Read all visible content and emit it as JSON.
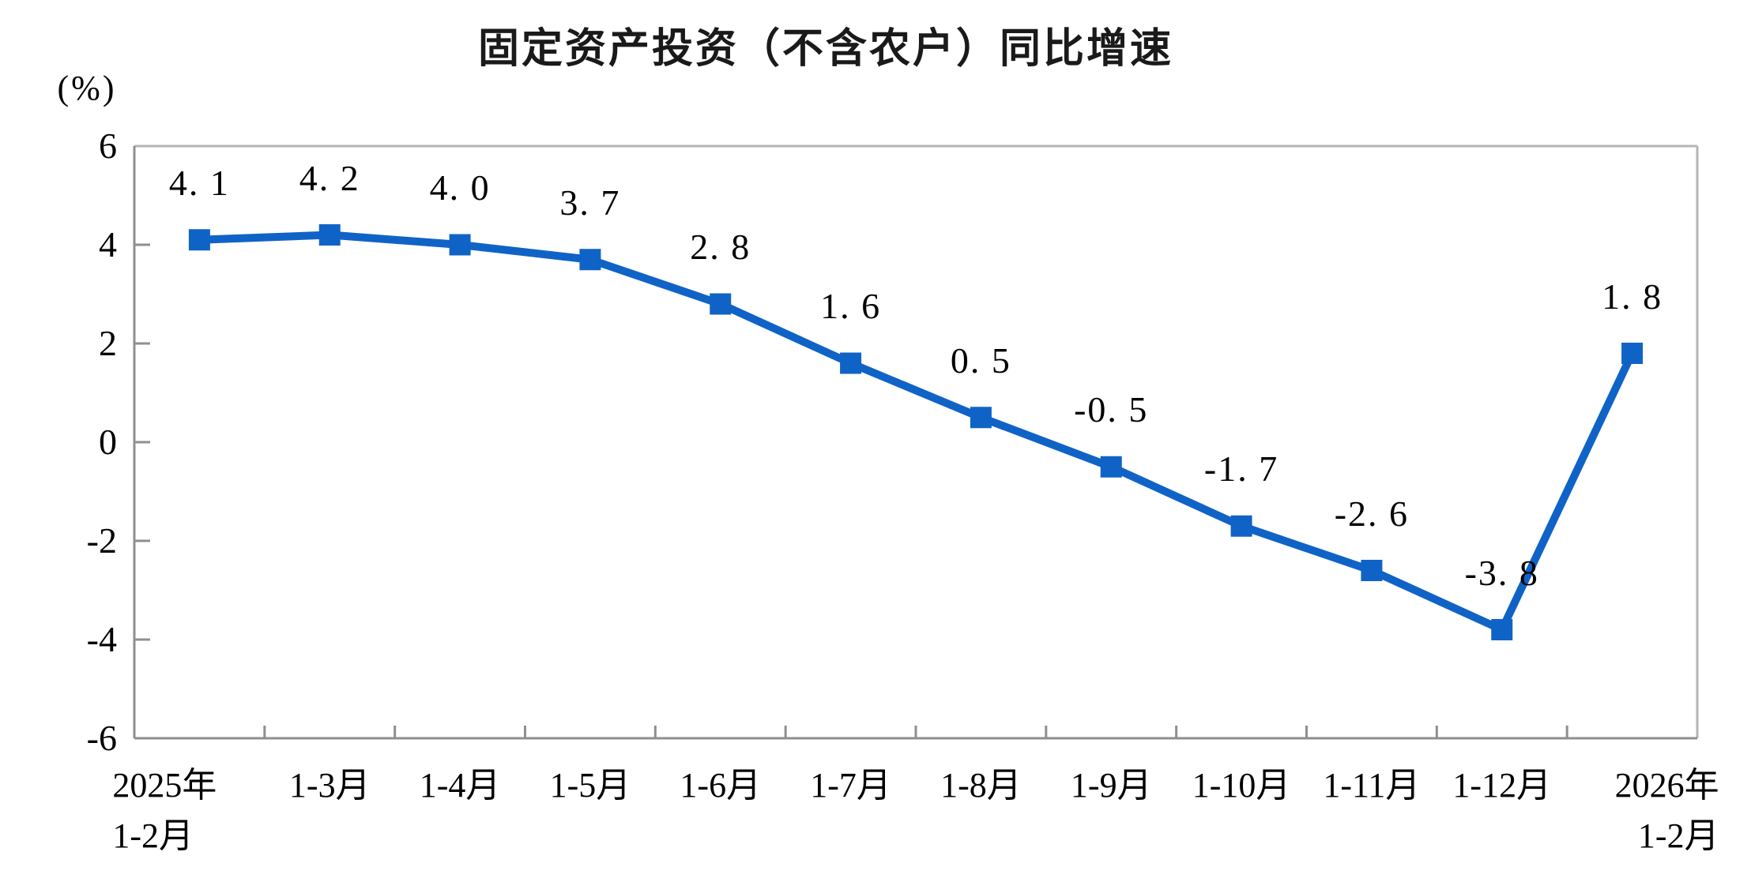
{
  "chart_data": {
    "type": "line",
    "title": "固定资产投资（不含农户）同比增速",
    "unit_label": "(%)",
    "categories": [
      "2025年\n1-2月",
      "1-3月",
      "1-4月",
      "1-5月",
      "1-6月",
      "1-7月",
      "1-8月",
      "1-9月",
      "1-10月",
      "1-11月",
      "1-12月",
      "2026年\n1-2月"
    ],
    "values": [
      4.1,
      4.2,
      4.0,
      3.7,
      2.8,
      1.6,
      0.5,
      -0.5,
      -1.7,
      -2.6,
      -3.8,
      1.8
    ],
    "data_labels": [
      "4. 1",
      "4. 2",
      "4. 0",
      "3. 7",
      "2. 8",
      "1. 6",
      "0. 5",
      "-0. 5",
      "-1. 7",
      "-2. 6",
      "-3. 8",
      "1. 8"
    ],
    "y_ticks": [
      "6",
      "4",
      "2",
      "0",
      "-2",
      "-4",
      "-6"
    ],
    "ylim": [
      -6,
      6
    ],
    "xlabel": "",
    "ylabel": "(%)",
    "grid": false,
    "legend": "none",
    "marker": "square",
    "colors": {
      "line": "#1063c6",
      "marker": "#1063c6",
      "axis": "#8f8f8f",
      "border": "#b5b5b5",
      "text": "#000000"
    }
  }
}
